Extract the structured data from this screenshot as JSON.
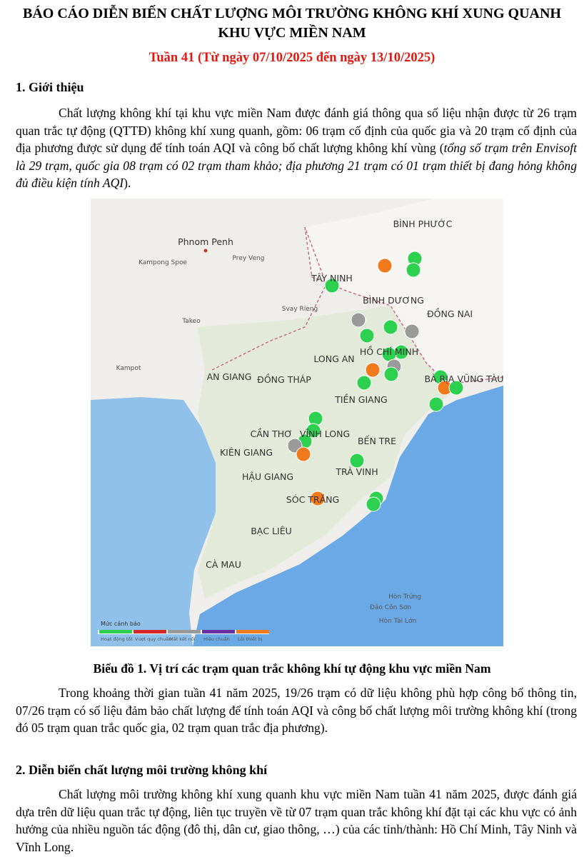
{
  "header": {
    "title": "BÁO CÁO DIỄN BIẾN CHẤT LƯỢNG MÔI TRƯỜNG KHÔNG KHÍ XUNG QUANH KHU VỰC MIỀN NAM",
    "subtitle": "Tuần 41 (Từ ngày 07/10/2025 đến ngày 13/10/2025)"
  },
  "section1": {
    "heading": "1.  Giới thiệu",
    "paragraph": {
      "text": "Chất lượng không khí tại khu vực miền Nam được đánh giá thông qua số liệu nhận được từ 26 trạm quan trắc tự động (QTTĐ) không khí xung quanh, gồm: 06 trạm cố định của quốc gia và 20 trạm cố định của địa phương được sử dụng để tính toán AQI và công bố chất lượng không khí vùng (",
      "italic": "tổng số trạm trên Envisoft là 29 trạm, quốc gia 08 trạm có 02 trạm tham khảo; địa phương 21 trạm có 01 trạm thiết bị đang hỏng không đủ điều kiện tính AQI",
      "end": ")."
    }
  },
  "map": {
    "labels": [
      "Phnom Penh",
      "BÌNH PHƯỚC",
      "TÂY NINH",
      "BÌNH DƯƠNG",
      "ĐỒNG NAI",
      "LONG AN",
      "HỒ CHÍ MINH",
      "BÀ RỊA VŨNG TÀU",
      "AN GIANG",
      "ĐỒNG THÁP",
      "TIỀN GIANG",
      "CẦN THƠ",
      "VĨNH LONG",
      "BẾN TRE",
      "KIÊN GIANG",
      "TRÀ VINH",
      "HẬU GIANG",
      "SÓC TRĂNG",
      "BẠC LIÊU",
      "CÀ MAU",
      "Kampot",
      "Takeo",
      "Prey Veng",
      "Svay Rieng",
      "Kampong Spoe",
      "Hòn Trứng",
      "Đảo Côn Sơn",
      "Hòn Tài Lớn"
    ],
    "legend_title": "Mức cảnh báo",
    "legend_items": [
      "Hoạt động tốt",
      "Vượt quy chuẩn",
      "Mất kết nối",
      "Hiệu chuẩn",
      "Lỗi thiết bị"
    ]
  },
  "figure_caption": "Biểu đồ 1. Vị trí các trạm quan trắc không khí tự động khu vực miền Nam",
  "paragraph2": "Trong khoảng thời gian tuần 41 năm 2025, 19/26 trạm có dữ liệu không phù hợp công bố thông tin, 07/26 trạm có số liệu đảm bảo chất lượng để tính toán AQI và công bố chất lượng môi trường không khí (trong đó 05 trạm quan trắc quốc gia, 02 trạm quan trắc địa phương).",
  "section2": {
    "heading": "2. Diễn biến chất lượng môi trường không khí",
    "paragraph": "Chất lượng môi trường không khí xung quanh khu vực miền Nam tuần 41 năm 2025, được đánh giá dựa trên dữ liệu quan trắc tự động, liên tục truyền về từ 07 trạm quan trắc không khí đặt tại các khu vực có ảnh hưởng của nhiều nguồn tác động (đô thị, dân cư, giao thông, …) của các tỉnh/thành: Hồ Chí Minh, Tây Ninh và Vĩnh Long."
  }
}
